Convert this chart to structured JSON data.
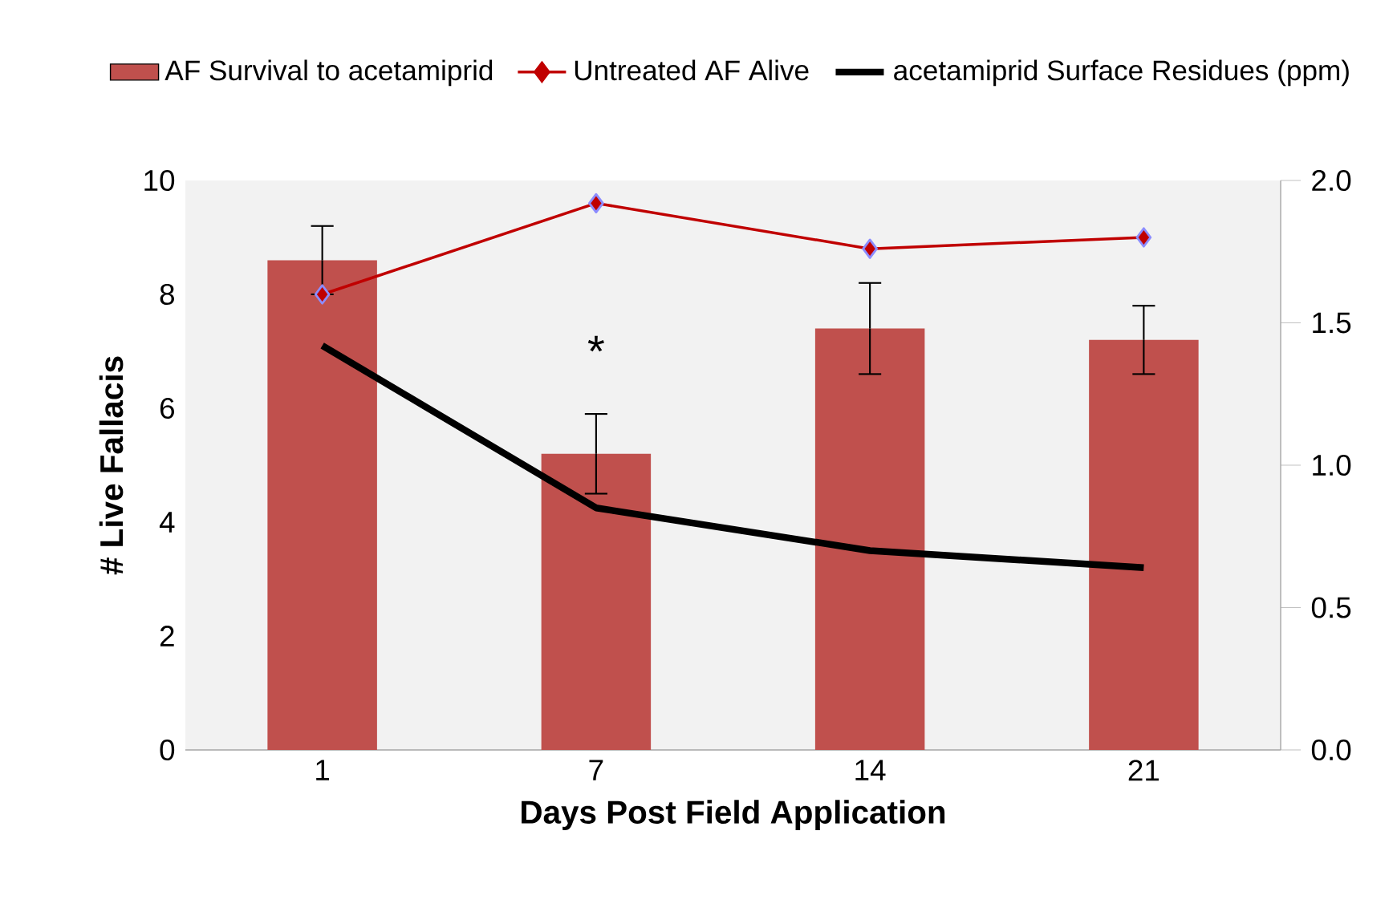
{
  "chart_data": {
    "type": "bar",
    "xlabel": "Days Post Field Application",
    "ylabel": "# Live  Fallacis",
    "categories": [
      "1",
      "7",
      "14",
      "21"
    ],
    "series": [
      {
        "name": "AF Survival to acetamiprid",
        "color": "#c0504d",
        "values": [
          8.6,
          5.2,
          7.4,
          7.2
        ],
        "errors": [
          0.6,
          0.7,
          0.8,
          0.6
        ]
      },
      {
        "name": "Untreated AF Alive",
        "type": "line",
        "color": "#c00000",
        "marker": "diamond",
        "values": [
          8.0,
          9.6,
          8.8,
          9.0
        ]
      },
      {
        "name": "acetamiprid Surface Residues (ppm)",
        "type": "line",
        "color": "#000000",
        "axis": "y2",
        "values": [
          1.42,
          0.85,
          0.7,
          0.64
        ]
      }
    ],
    "ylim": [
      0,
      10
    ],
    "yticks": [
      0,
      2,
      4,
      6,
      8,
      10
    ],
    "y2lim": [
      0,
      2.0
    ],
    "y2ticks": [
      {
        "value": 0,
        "label": "0.0"
      },
      0.5,
      {
        "value": 1,
        "label": "1.0"
      },
      1.5,
      {
        "value": 2,
        "label": "2.0"
      }
    ],
    "annotations": [
      "*"
    ],
    "legend": "top",
    "grid": false
  }
}
